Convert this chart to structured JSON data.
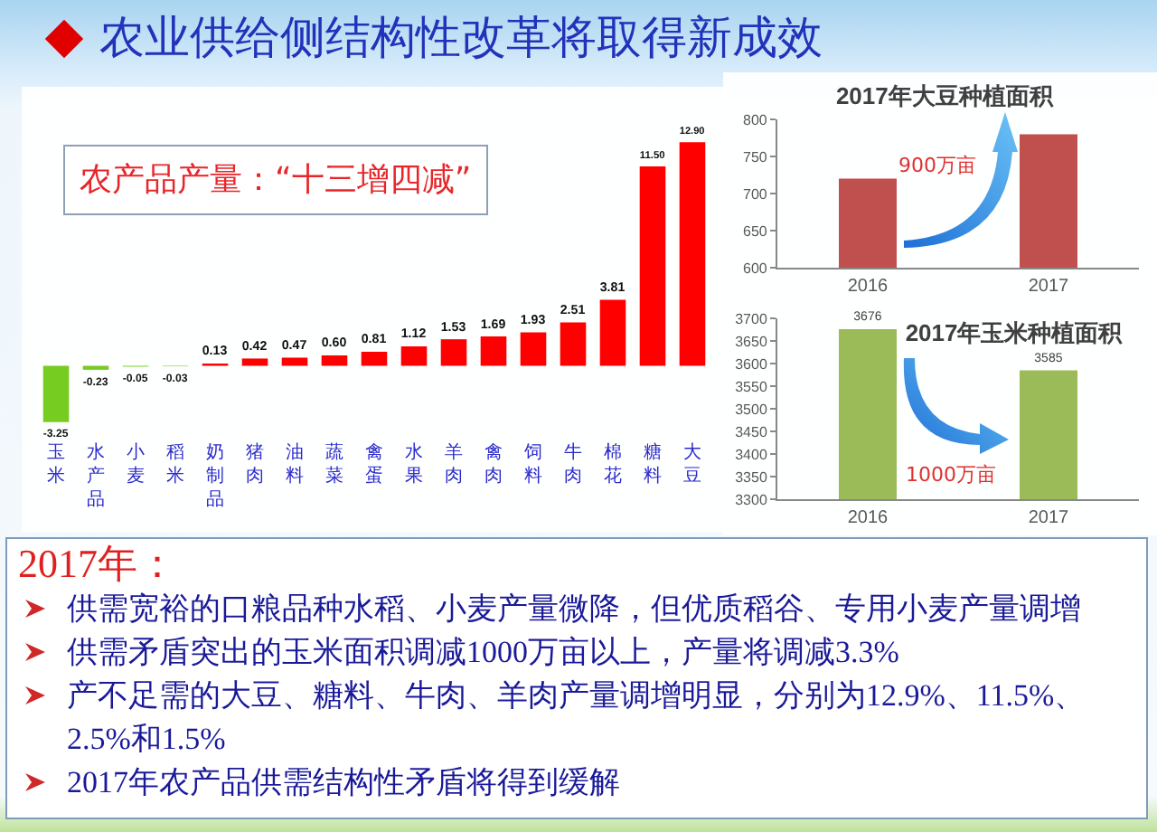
{
  "chart_data": [
    {
      "type": "bar",
      "title": "农业供给侧结构性改革将取得新成效",
      "subtitle": "农产品产量：“十三增四减”",
      "categories": [
        "玉米",
        "水产品",
        "小麦",
        "稻米",
        "奶制品",
        "猪肉",
        "油料",
        "蔬菜",
        "禽蛋",
        "水果",
        "羊肉",
        "禽肉",
        "饲料",
        "牛肉",
        "棉花",
        "糖料",
        "大豆"
      ],
      "values": [
        -3.25,
        -0.23,
        -0.05,
        -0.03,
        0.13,
        0.42,
        0.47,
        0.6,
        0.81,
        1.12,
        1.53,
        1.69,
        1.93,
        2.51,
        3.81,
        11.5,
        12.9
      ],
      "colors": [
        "#77cc22",
        "#77cc22",
        "#77cc22",
        "#77cc22",
        "#ff0000",
        "#ff0000",
        "#ff0000",
        "#ff0000",
        "#ff0000",
        "#ff0000",
        "#ff0000",
        "#ff0000",
        "#ff0000",
        "#ff0000",
        "#ff0000",
        "#ff0000",
        "#ff0000"
      ],
      "value_labels": [
        "-3.25",
        "-0.23",
        "-0.05",
        "-0.03",
        "0.13",
        "0.42",
        "0.47",
        "0.60",
        "0.81",
        "1.12",
        "1.53",
        "1.69",
        "1.93",
        "2.51",
        "3.81",
        "11.50",
        "12.90"
      ],
      "tick_labels": "x"
    },
    {
      "type": "bar",
      "title": "2017年大豆种植面积",
      "categories": [
        "2016",
        "2017"
      ],
      "values": [
        720,
        780
      ],
      "color": "#c0504d",
      "ylim": [
        600,
        800
      ],
      "yticks": [
        600,
        650,
        700,
        750,
        800
      ],
      "annotations": [
        "900万亩"
      ]
    },
    {
      "type": "bar",
      "title": "2017年玉米种植面积",
      "categories": [
        "2016",
        "2017"
      ],
      "values": [
        3676,
        3585
      ],
      "color": "#9bbb59",
      "ylim": [
        3300,
        3700
      ],
      "yticks": [
        3300,
        3350,
        3400,
        3450,
        3500,
        3550,
        3600,
        3650,
        3700
      ],
      "data_labels": true,
      "annotations": [
        "1000万亩"
      ]
    },
    {
      "type": "other",
      "title": "2017年：",
      "annotations": [
        "供需宽裕的口粮品种水稻、小麦产量微降，但优质稻谷、专用小麦产量调增",
        "供需矛盾突出的玉米面积调减1000万亩以上，产量将调减3.3%",
        "产不足需的大豆、糖料、牛肉、羊肉产量调增明显，分别为12.9%、11.5%、2.5%和1.5%",
        "2017年农产品供需结构性矛盾将得到缓解"
      ]
    }
  ]
}
